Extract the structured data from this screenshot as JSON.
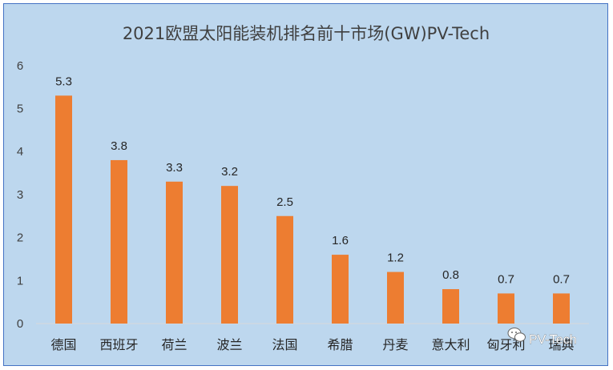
{
  "chart_data": {
    "type": "bar",
    "title": "2021欧盟太阳能装机排名前十市场(GW)PV-Tech",
    "xlabel": "",
    "ylabel": "",
    "categories": [
      "德国",
      "西班牙",
      "荷兰",
      "波兰",
      "法国",
      "希腊",
      "丹麦",
      "意大利",
      "匈牙利",
      "瑞典"
    ],
    "series": [
      {
        "values": [
          5.3,
          3.8,
          3.3,
          3.2,
          2.5,
          1.6,
          1.2,
          0.8,
          0.7,
          0.7
        ]
      }
    ],
    "data_labels": [
      "5.3",
      "3.8",
      "3.3",
      "3.2",
      "2.5",
      "1.6",
      "1.2",
      "0.8",
      "0.7",
      "0.7"
    ],
    "ylim": [
      0,
      6
    ],
    "yticks": [
      "0",
      "1",
      "2",
      "3",
      "4",
      "5",
      "6"
    ],
    "grid": false,
    "legend": "none",
    "colors": {
      "bar": "#ed7d31",
      "background": "#bdd7ee",
      "border": "#4472c4"
    }
  },
  "watermark": {
    "icon": "wechat-icon",
    "text": "PV-Tech"
  }
}
